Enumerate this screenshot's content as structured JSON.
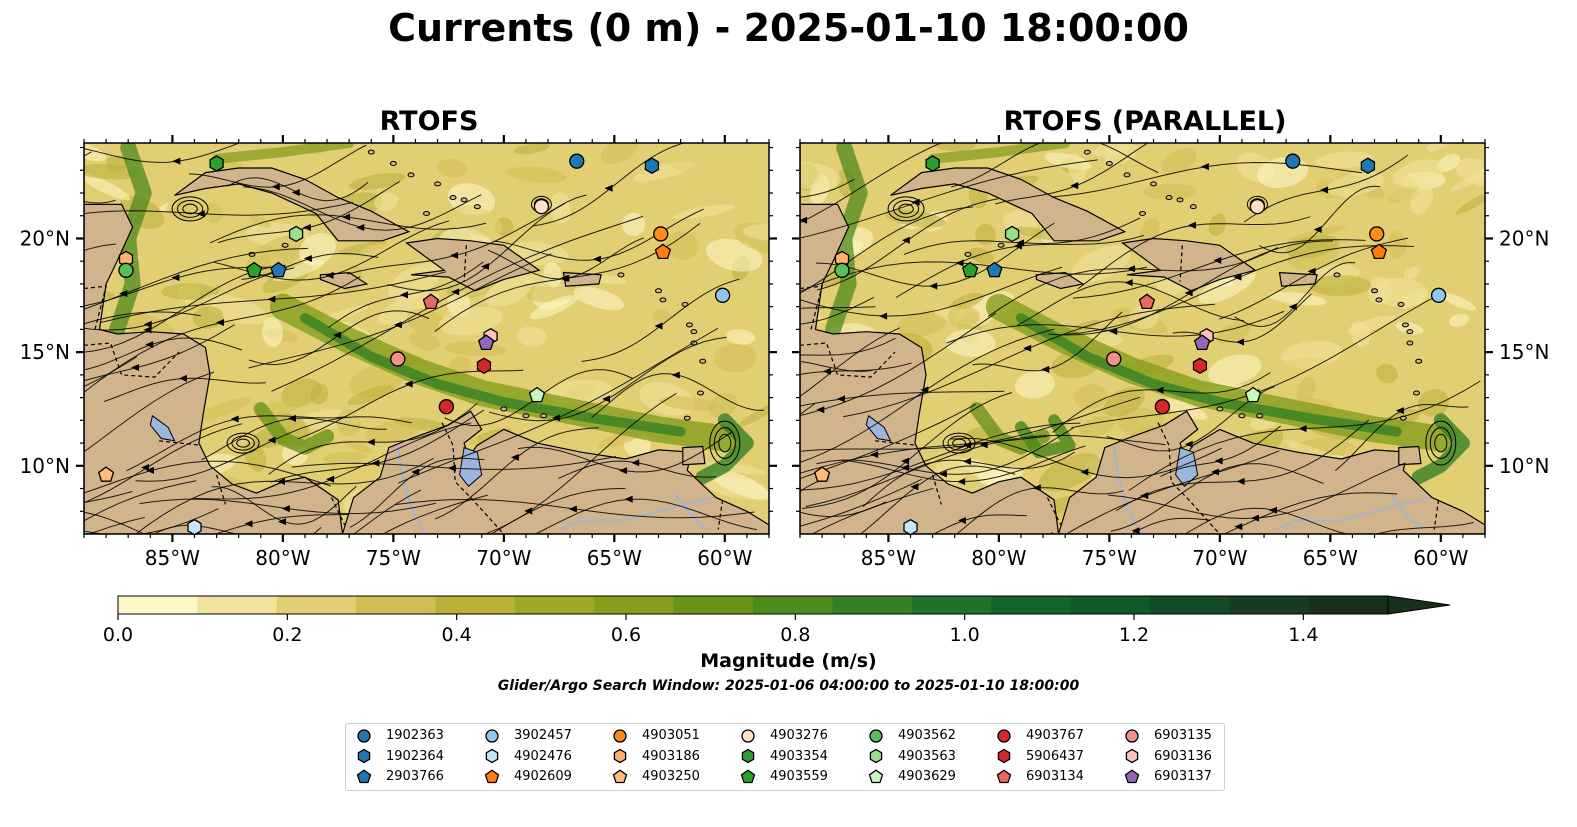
{
  "title": "Currents (0 m) - 2025-01-10 18:00:00",
  "panels": [
    {
      "title": "RTOFS",
      "side": "left"
    },
    {
      "title": "RTOFS (PARALLEL)",
      "side": "right"
    }
  ],
  "map": {
    "lon_range": [
      -89,
      -58
    ],
    "lat_range": [
      7,
      24.2
    ],
    "lon_ticks": [
      "85°W",
      "80°W",
      "75°W",
      "70°W",
      "65°W",
      "60°W"
    ],
    "lon_tick_values": [
      -85,
      -80,
      -75,
      -70,
      -65,
      -60
    ],
    "lat_ticks": [
      "20°N",
      "15°N",
      "10°N"
    ],
    "lat_tick_values": [
      20,
      15,
      10
    ],
    "land_color": "#d2b48c",
    "water_color": "#9bb5dc"
  },
  "colorbar": {
    "label": "Magnitude (m/s)",
    "tick_labels": [
      "0.0",
      "0.2",
      "0.4",
      "0.6",
      "0.8",
      "1.0",
      "1.2",
      "1.4"
    ],
    "tick_values": [
      0.0,
      0.2,
      0.4,
      0.6,
      0.8,
      1.0,
      1.2,
      1.4
    ],
    "range": [
      0,
      1.5
    ],
    "extend": "max",
    "colors": [
      "#fdf7c6",
      "#f0e39b",
      "#e2cf74",
      "#d1bd53",
      "#b9b03a",
      "#a0a627",
      "#869d1d",
      "#6a9419",
      "#4f8a1d",
      "#377f24",
      "#207228",
      "#12652c",
      "#105a2a",
      "#124b25",
      "#163d20",
      "#18301b"
    ]
  },
  "search_window": "Glider/Argo Search Window: 2025-01-06 04:00:00 to 2025-01-10 18:00:00",
  "floats": [
    {
      "id": "1902363",
      "marker": "circle",
      "color": "#1f77b4",
      "lon": -66.7,
      "lat": 23.4
    },
    {
      "id": "1902364",
      "marker": "hexagon",
      "color": "#1f77b4",
      "lon": -63.3,
      "lat": 23.2
    },
    {
      "id": "2903766",
      "marker": "pentagon",
      "color": "#1f77b4",
      "lon": -80.2,
      "lat": 18.6
    },
    {
      "id": "3902457",
      "marker": "circle",
      "color": "#8ec7ef",
      "lon": -60.1,
      "lat": 17.5
    },
    {
      "id": "4902476",
      "marker": "hexagon",
      "color": "#c6e6fb",
      "lon": -84.0,
      "lat": 7.3
    },
    {
      "id": "4902609",
      "marker": "pentagon",
      "color": "#ff7f0e",
      "lon": -62.8,
      "lat": 19.4
    },
    {
      "id": "4903051",
      "marker": "circle",
      "color": "#ff8c1a",
      "lon": -62.9,
      "lat": 20.2
    },
    {
      "id": "4903186",
      "marker": "hexagon",
      "color": "#ffb26e",
      "lon": -87.1,
      "lat": 19.1
    },
    {
      "id": "4903250",
      "marker": "pentagon",
      "color": "#ffbb78",
      "lon": -88.0,
      "lat": 9.6
    },
    {
      "id": "4903276",
      "marker": "circle",
      "color": "#fde0c5",
      "lon": -68.3,
      "lat": 21.4
    },
    {
      "id": "4903354",
      "marker": "hexagon",
      "color": "#2ca02c",
      "lon": -83.0,
      "lat": 23.3
    },
    {
      "id": "4903559",
      "marker": "pentagon",
      "color": "#2ca02c",
      "lon": -81.3,
      "lat": 18.6
    },
    {
      "id": "4903562",
      "marker": "circle",
      "color": "#5abf5a",
      "lon": -87.1,
      "lat": 18.6
    },
    {
      "id": "4903563",
      "marker": "hexagon",
      "color": "#98df8a",
      "lon": -79.4,
      "lat": 20.2
    },
    {
      "id": "4903629",
      "marker": "pentagon",
      "color": "#c9f5c0",
      "lon": -68.5,
      "lat": 13.1
    },
    {
      "id": "4903767",
      "marker": "circle",
      "color": "#d62728",
      "lon": -72.6,
      "lat": 12.6
    },
    {
      "id": "5906437",
      "marker": "hexagon",
      "color": "#d62728",
      "lon": -70.9,
      "lat": 14.4
    },
    {
      "id": "6903134",
      "marker": "pentagon",
      "color": "#e8695f",
      "lon": -73.3,
      "lat": 17.2
    },
    {
      "id": "6903135",
      "marker": "circle",
      "color": "#f4908a",
      "lon": -74.8,
      "lat": 14.7
    },
    {
      "id": "6903136",
      "marker": "hexagon",
      "color": "#ffc0c0",
      "lon": -70.6,
      "lat": 15.7
    },
    {
      "id": "6903137",
      "marker": "pentagon",
      "color": "#9467bd",
      "lon": -70.8,
      "lat": 15.4
    }
  ]
}
